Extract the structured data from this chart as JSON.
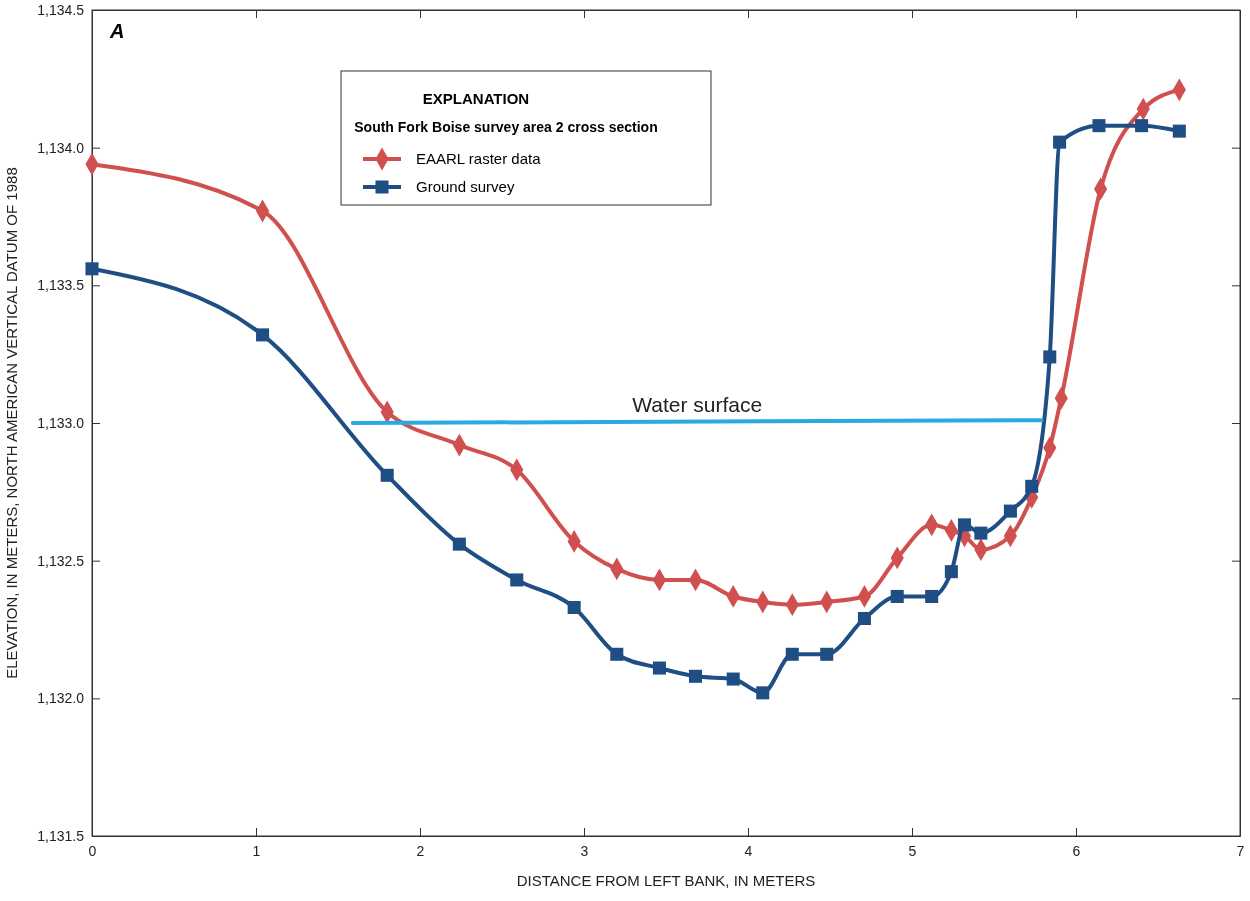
{
  "chart_data": {
    "type": "line",
    "xlabel": "DISTANCE FROM LEFT BANK, IN METERS",
    "ylabel": "ELEVATION, IN METERS, NORTH AMERICAN VERTICAL DATUM OF 1988",
    "legend_title": "EXPLANATION\nSouth Fork Boise survey area 2 cross section",
    "legend": "top left",
    "grid": false,
    "xlim": [
      0,
      7
    ],
    "xticks": [
      0,
      1,
      2,
      3,
      4,
      5,
      6,
      7
    ],
    "ylim": [
      1131.5,
      1134.5
    ],
    "yticks": [
      {
        "value": 1131.5,
        "label": "1,131.5"
      },
      {
        "value": 1132,
        "label": "1,132.0"
      },
      {
        "value": 1132.5,
        "label": "1,132.5"
      },
      {
        "value": 1133,
        "label": "1,133.0"
      },
      {
        "value": 1133.5,
        "label": "1,133.5"
      },
      {
        "value": 1134,
        "label": "1,134.0"
      },
      {
        "value": 1134.5,
        "label": "1,134.5"
      }
    ],
    "annotations": [
      "A"
    ],
    "series": [
      {
        "name": "EAARL raster data",
        "color": "#d0504f",
        "marker": "diamond",
        "x": [
          0,
          1.04,
          1.8,
          2.24,
          2.59,
          2.94,
          3.2,
          3.46,
          3.68,
          3.91,
          4.09,
          4.27,
          4.48,
          4.71,
          4.91,
          5.12,
          5.24,
          5.32,
          5.42,
          5.6,
          5.73,
          5.84,
          5.91,
          6.15,
          6.41,
          6.63
        ],
        "values": [
          1133.94,
          1133.77,
          1133.04,
          1132.92,
          1132.83,
          1132.57,
          1132.47,
          1132.43,
          1132.43,
          1132.37,
          1132.35,
          1132.34,
          1132.35,
          1132.37,
          1132.51,
          1132.63,
          1132.61,
          1132.59,
          1132.54,
          1132.59,
          1132.73,
          1132.91,
          1133.09,
          1133.85,
          1134.14,
          1134.21
        ]
      },
      {
        "name": "Ground survey",
        "color": "#1f4e85",
        "marker": "square",
        "x": [
          0,
          1.04,
          1.8,
          2.24,
          2.59,
          2.94,
          3.2,
          3.46,
          3.68,
          3.91,
          4.09,
          4.27,
          4.48,
          4.71,
          4.91,
          5.12,
          5.24,
          5.32,
          5.42,
          5.6,
          5.73,
          5.84,
          5.9,
          6.14,
          6.4,
          6.63
        ],
        "values": [
          1133.56,
          1133.32,
          1132.81,
          1132.56,
          1132.43,
          1132.33,
          1132.16,
          1132.11,
          1132.08,
          1132.07,
          1132.02,
          1132.16,
          1132.16,
          1132.29,
          1132.37,
          1132.37,
          1132.46,
          1132.63,
          1132.6,
          1132.68,
          1132.77,
          1133.24,
          1134.02,
          1134.08,
          1134.08,
          1134.06
        ]
      },
      {
        "name": "Water surface",
        "color": "#29abe2",
        "marker": "none",
        "x": [
          1.59,
          5.79
        ],
        "values": [
          1133.0,
          1133.01
        ]
      }
    ]
  }
}
